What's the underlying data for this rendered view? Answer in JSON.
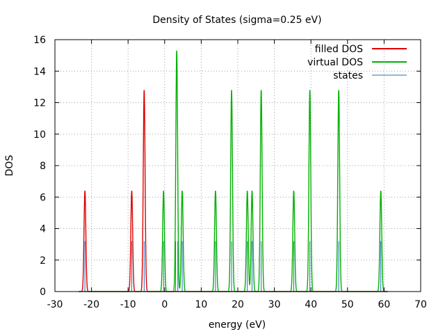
{
  "chart_data": {
    "type": "line",
    "title": "Density of States (sigma=0.25 eV)",
    "xlabel": "energy (eV)",
    "ylabel": "DOS",
    "xlim": [
      -30,
      70
    ],
    "ylim": [
      0,
      16
    ],
    "xticks": [
      -30,
      -20,
      -10,
      0,
      10,
      20,
      30,
      40,
      50,
      60,
      70
    ],
    "yticks": [
      0,
      2,
      4,
      6,
      8,
      10,
      12,
      14,
      16
    ],
    "xtick_labels": [
      "-30",
      "-20",
      "-10",
      "0",
      "10",
      "20",
      "30",
      "40",
      "50",
      "60",
      "70"
    ],
    "ytick_labels": [
      "0",
      "2",
      "4",
      "6",
      "8",
      "10",
      "12",
      "14",
      "16"
    ],
    "grid": true,
    "legend_position": "top-right",
    "sigma": 0.25,
    "curve_range": [
      -23.5,
      61.0
    ],
    "series": [
      {
        "name": "filled DOS",
        "color": "#e00000",
        "peaks": [
          {
            "energy": -21.8,
            "height": 6.4
          },
          {
            "energy": -9.0,
            "height": 6.4
          },
          {
            "energy": -5.6,
            "height": 12.8
          }
        ]
      },
      {
        "name": "virtual DOS",
        "color": "#00b000",
        "peaks": [
          {
            "energy": -0.3,
            "height": 6.4
          },
          {
            "energy": 3.3,
            "height": 15.3
          },
          {
            "energy": 4.8,
            "height": 6.4
          },
          {
            "energy": 13.9,
            "height": 6.4
          },
          {
            "energy": 18.3,
            "height": 12.8
          },
          {
            "energy": 22.6,
            "height": 6.4
          },
          {
            "energy": 23.9,
            "height": 6.4
          },
          {
            "energy": 26.4,
            "height": 12.8
          },
          {
            "energy": 35.3,
            "height": 6.4
          },
          {
            "energy": 39.7,
            "height": 12.8
          },
          {
            "energy": 47.6,
            "height": 12.8
          },
          {
            "energy": 59.1,
            "height": 6.4
          }
        ]
      },
      {
        "name": "states",
        "color": "#1f6fc0",
        "stems": [
          {
            "energy": -21.8,
            "height": 3.2
          },
          {
            "energy": -9.0,
            "height": 3.2
          },
          {
            "energy": -5.6,
            "height": 3.2
          },
          {
            "energy": -0.3,
            "height": 3.2
          },
          {
            "energy": 3.0,
            "height": 3.2
          },
          {
            "energy": 3.6,
            "height": 3.2
          },
          {
            "energy": 4.8,
            "height": 3.2
          },
          {
            "energy": 13.9,
            "height": 3.2
          },
          {
            "energy": 18.3,
            "height": 3.2
          },
          {
            "energy": 22.6,
            "height": 3.2
          },
          {
            "energy": 23.9,
            "height": 3.2
          },
          {
            "energy": 26.4,
            "height": 3.2
          },
          {
            "energy": 35.3,
            "height": 3.2
          },
          {
            "energy": 39.7,
            "height": 3.2
          },
          {
            "energy": 47.6,
            "height": 3.2
          },
          {
            "energy": 59.1,
            "height": 3.2
          }
        ]
      }
    ]
  }
}
